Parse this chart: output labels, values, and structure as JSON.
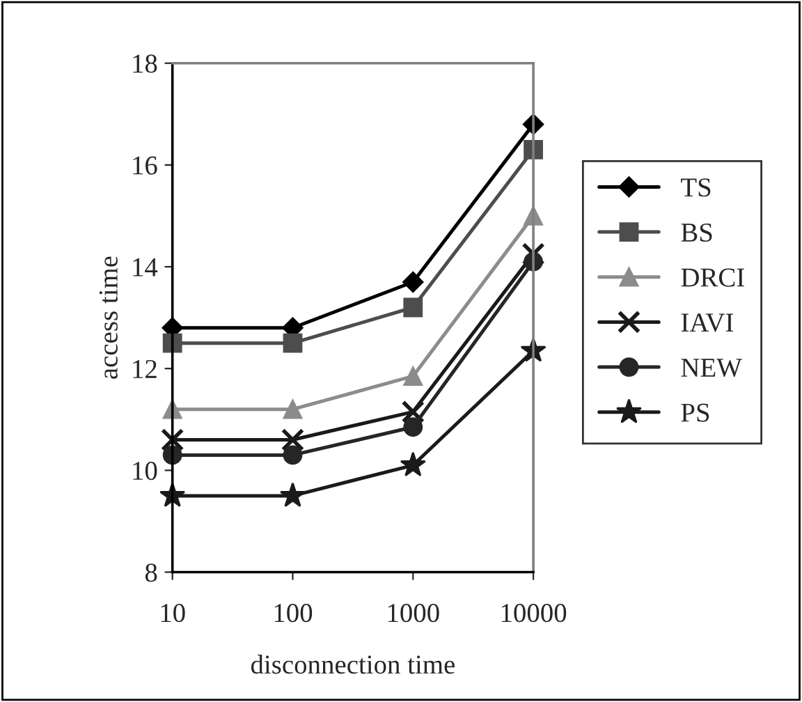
{
  "chart_data": {
    "type": "line",
    "xlabel": "disconnection time",
    "ylabel": "access time",
    "categories": [
      "10",
      "100",
      "1000",
      "10000"
    ],
    "ylim": [
      8,
      18
    ],
    "yticks": [
      8,
      10,
      12,
      14,
      16,
      18
    ],
    "grid": false,
    "legend": "right",
    "series": [
      {
        "name": "TS",
        "color": "#000000",
        "marker": "diamond",
        "values": [
          12.8,
          12.8,
          13.7,
          16.8
        ]
      },
      {
        "name": "BS",
        "color": "#4d4d4d",
        "marker": "square",
        "values": [
          12.5,
          12.5,
          13.2,
          16.3
        ]
      },
      {
        "name": "DRCI",
        "color": "#8c8c8c",
        "marker": "triangle",
        "values": [
          11.2,
          11.2,
          11.85,
          15.0
        ]
      },
      {
        "name": "IAVI",
        "color": "#1a1a1a",
        "marker": "cross",
        "values": [
          10.6,
          10.6,
          11.15,
          14.25
        ]
      },
      {
        "name": "NEW",
        "color": "#262626",
        "marker": "circle",
        "values": [
          10.3,
          10.3,
          10.85,
          14.1
        ]
      },
      {
        "name": "PS",
        "color": "#1a1a1a",
        "marker": "star",
        "values": [
          9.5,
          9.5,
          10.1,
          12.35
        ]
      }
    ]
  }
}
